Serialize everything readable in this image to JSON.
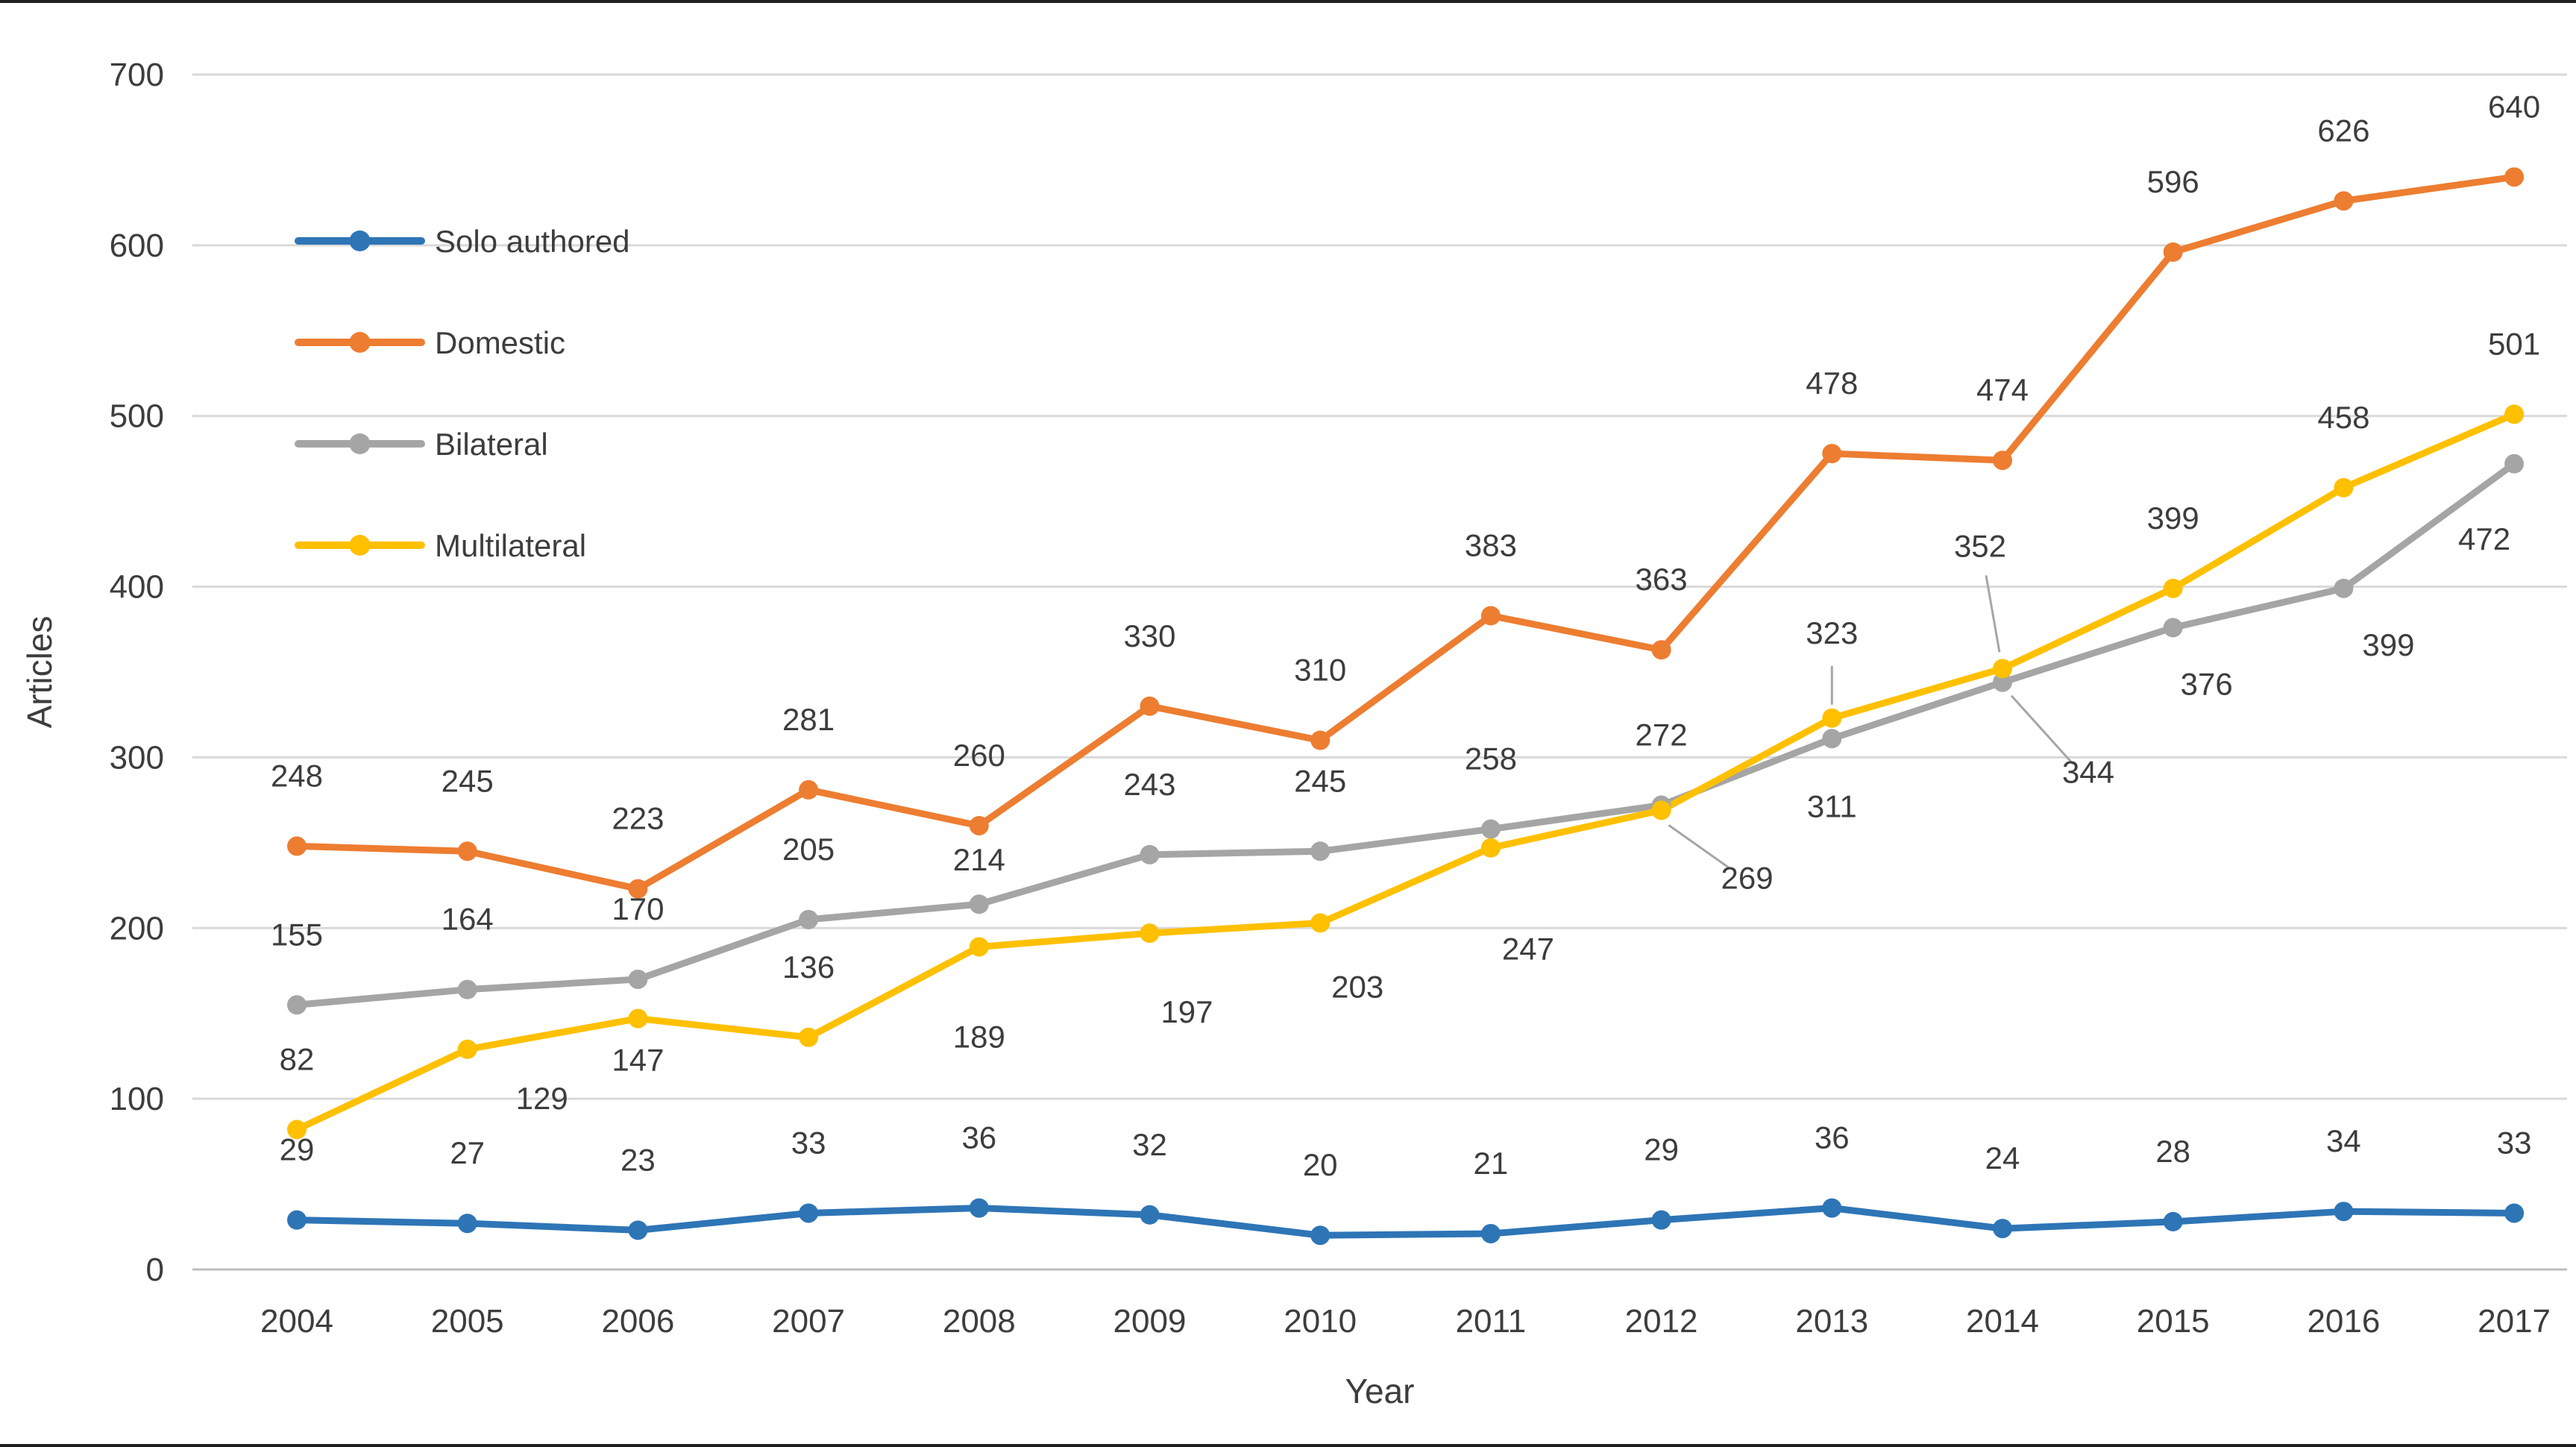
{
  "chart_data": {
    "type": "line",
    "title": "",
    "xlabel": "Year",
    "ylabel": "Articles",
    "ylim": [
      0,
      700
    ],
    "ytick_step": 100,
    "grid": true,
    "legend_position": "top-left-inside",
    "colors": {
      "solo_authored": "#2E75B6",
      "domestic": "#ED7D31",
      "bilateral": "#A5A5A5",
      "multilateral": "#FFC000",
      "gridline": "#D9D9D9",
      "axis_line": "#BFBFBF",
      "label_text": "#3D3D3D",
      "leader_line": "#A6A6A6"
    },
    "categories": [
      "2004",
      "2005",
      "2006",
      "2007",
      "2008",
      "2009",
      "2010",
      "2011",
      "2012",
      "2013",
      "2014",
      "2015",
      "2016",
      "2017"
    ],
    "series": [
      {
        "name": "Solo authored",
        "color": "#2E75B6",
        "values": [
          29,
          27,
          23,
          33,
          36,
          32,
          20,
          21,
          29,
          36,
          24,
          28,
          34,
          33
        ],
        "label_offsets": [
          [
            0,
            -80
          ],
          [
            0,
            -80
          ],
          [
            0,
            -80
          ],
          [
            0,
            -80
          ],
          [
            0,
            -80
          ],
          [
            0,
            -80
          ],
          [
            0,
            -80
          ],
          [
            0,
            -80
          ],
          [
            0,
            -80
          ],
          [
            0,
            -80
          ],
          [
            0,
            -80
          ],
          [
            0,
            -80
          ],
          [
            0,
            -80
          ],
          [
            0,
            -80
          ]
        ]
      },
      {
        "name": "Domestic",
        "color": "#ED7D31",
        "values": [
          248,
          245,
          223,
          281,
          260,
          330,
          310,
          383,
          363,
          478,
          474,
          596,
          626,
          640
        ],
        "label_offsets": [
          [
            0,
            -80
          ],
          [
            0,
            -80
          ],
          [
            0,
            -80
          ],
          [
            0,
            -80
          ],
          [
            0,
            -80
          ],
          [
            0,
            -80
          ],
          [
            0,
            -80
          ],
          [
            0,
            -80
          ],
          [
            0,
            -80
          ],
          [
            0,
            -80
          ],
          [
            0,
            -80
          ],
          [
            0,
            -80
          ],
          [
            0,
            -80
          ],
          [
            0,
            -80
          ]
        ]
      },
      {
        "name": "Bilateral",
        "color": "#A5A5A5",
        "values": [
          155,
          164,
          170,
          205,
          214,
          243,
          245,
          258,
          272,
          311,
          344,
          376,
          399,
          472
        ],
        "label_offsets": [
          [
            0,
            -80
          ],
          [
            0,
            -80
          ],
          [
            0,
            -80
          ],
          [
            0,
            -80
          ],
          [
            0,
            -45
          ],
          [
            0,
            -80
          ],
          [
            0,
            -80
          ],
          [
            0,
            -80
          ],
          [
            0,
            -80
          ],
          [
            0,
            105
          ],
          [
            115,
            135
          ],
          [
            45,
            90
          ],
          [
            60,
            90
          ],
          [
            -40,
            115
          ]
        ],
        "leaders": {
          "10": [
            12,
            18,
            95,
            110
          ]
        }
      },
      {
        "name": "Multilateral",
        "color": "#FFC000",
        "values": [
          82,
          129,
          147,
          136,
          189,
          197,
          203,
          247,
          269,
          323,
          352,
          399,
          458,
          501
        ],
        "label_offsets": [
          [
            0,
            -80
          ],
          [
            100,
            80
          ],
          [
            0,
            70
          ],
          [
            0,
            -80
          ],
          [
            0,
            135
          ],
          [
            50,
            120
          ],
          [
            50,
            100
          ],
          [
            50,
            150
          ],
          [
            115,
            105
          ],
          [
            0,
            -100
          ],
          [
            -30,
            -150
          ],
          [
            0,
            -80
          ],
          [
            0,
            -80
          ],
          [
            0,
            -80
          ]
        ],
        "leaders": {
          "8": [
            10,
            20,
            92,
            78
          ],
          "9": [
            0,
            -70,
            0,
            -18
          ],
          "10": [
            -22,
            -125,
            -4,
            -22
          ]
        }
      }
    ]
  }
}
